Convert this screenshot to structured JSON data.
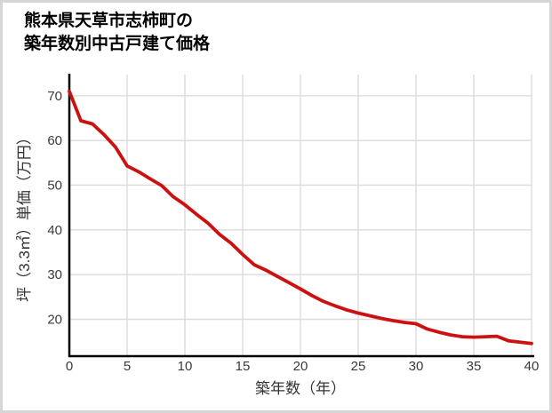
{
  "title": {
    "line1": "熊本県天草市志柿町の",
    "line2": "築年数別中古戸建て価格"
  },
  "colors": {
    "accent_line": "#cc1111",
    "grid": "#dcdcdc",
    "axis": "#000000",
    "tick_text": "#3a3a3a",
    "title_text": "#000000",
    "frame_border": "#d6d6d6",
    "background": "#ffffff"
  },
  "chart_data": {
    "type": "line",
    "title": "熊本県天草市志柿町の築年数別中古戸建て価格",
    "xlabel": "築年数（年）",
    "ylabel": "坪（3.3㎡）単価（万円）",
    "x": [
      0,
      1,
      2,
      3,
      4,
      5,
      6,
      7,
      8,
      9,
      10,
      11,
      12,
      13,
      14,
      15,
      16,
      17,
      18,
      19,
      20,
      21,
      22,
      23,
      24,
      25,
      26,
      27,
      28,
      29,
      30,
      31,
      32,
      33,
      34,
      35,
      36,
      37,
      38,
      39,
      40
    ],
    "values": [
      71,
      64.4,
      63.7,
      61.3,
      58.5,
      54.3,
      53.0,
      51.4,
      49.9,
      47.4,
      45.6,
      43.5,
      41.5,
      39.0,
      37.0,
      34.5,
      32.2,
      31.0,
      29.6,
      28.2,
      26.8,
      25.3,
      24.0,
      23.0,
      22.1,
      21.4,
      20.8,
      20.2,
      19.7,
      19.3,
      19.0,
      17.8,
      17.1,
      16.5,
      16.1,
      16.0,
      16.1,
      16.2,
      15.2,
      14.9,
      14.6
    ],
    "x_ticks": [
      0,
      5,
      10,
      15,
      20,
      25,
      30,
      35,
      40
    ],
    "y_ticks": [
      20,
      30,
      40,
      50,
      60,
      70
    ],
    "xlim": [
      0,
      40
    ],
    "ylim": [
      11.6,
      74.3
    ],
    "grid": true,
    "legend": false
  }
}
